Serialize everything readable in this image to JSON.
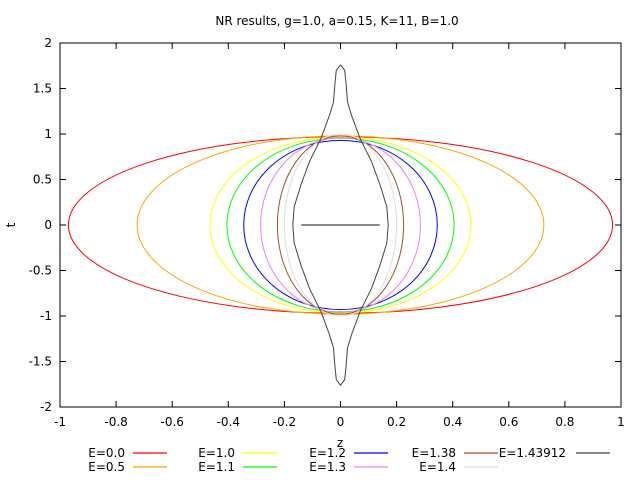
{
  "chart_data": {
    "type": "line",
    "title": "NR results, g=1.0, a=0.15, K=11, B=1.0",
    "xlabel": "z",
    "ylabel": "t",
    "xlim": [
      -1,
      1
    ],
    "ylim": [
      -2,
      2
    ],
    "xticks": [
      "-1",
      "-0.8",
      "-0.6",
      "-0.4",
      "-0.2",
      "0",
      "0.2",
      "0.4",
      "0.6",
      "0.8",
      "1"
    ],
    "yticks": [
      "2",
      "1.5",
      "1",
      "0.5",
      "0",
      "-0.5",
      "-1",
      "-1.5",
      "-2"
    ],
    "grid": false,
    "legend_position": "bottom",
    "series": [
      {
        "name": "E=0.0",
        "color": "#ff0000",
        "shape": "ellipse",
        "z_half_width": 0.97,
        "t_half_height": 0.97
      },
      {
        "name": "E=0.5",
        "color": "#ffa500",
        "shape": "ellipse",
        "z_half_width": 0.725,
        "t_half_height": 0.98
      },
      {
        "name": "E=1.0",
        "color": "#ffff00",
        "shape": "ellipse",
        "z_half_width": 0.465,
        "t_half_height": 0.97
      },
      {
        "name": "E=1.1",
        "color": "#00ff00",
        "shape": "ellipse",
        "z_half_width": 0.405,
        "t_half_height": 0.955
      },
      {
        "name": "E=1.2",
        "color": "#0000ff",
        "shape": "ellipse",
        "z_half_width": 0.345,
        "t_half_height": 0.93
      },
      {
        "name": "E=1.3",
        "color": "#ee82ee",
        "shape": "ellipse",
        "z_half_width": 0.285,
        "t_half_height": 0.96
      },
      {
        "name": "E=1.38",
        "color": "#a0522d",
        "shape": "ellipse",
        "z_half_width": 0.225,
        "t_half_height": 0.98
      },
      {
        "name": "E=1.4",
        "color": "#dddddd",
        "shape": "ellipse",
        "z_half_width": 0.2,
        "t_half_height": 1.0
      },
      {
        "name": "E=1.43912",
        "color": "#444444",
        "shape": "waist",
        "points": [
          [
            0.0,
            1.76
          ],
          [
            -0.015,
            1.7
          ],
          [
            -0.02,
            1.55
          ],
          [
            -0.025,
            1.35
          ],
          [
            -0.04,
            1.2
          ],
          [
            -0.07,
            0.95
          ],
          [
            -0.11,
            0.7
          ],
          [
            -0.14,
            0.45
          ],
          [
            -0.165,
            0.2
          ],
          [
            -0.17,
            0.0
          ],
          [
            -0.165,
            -0.2
          ],
          [
            -0.14,
            -0.45
          ],
          [
            -0.11,
            -0.7
          ],
          [
            -0.07,
            -0.95
          ],
          [
            -0.04,
            -1.2
          ],
          [
            -0.025,
            -1.35
          ],
          [
            -0.02,
            -1.55
          ],
          [
            -0.015,
            -1.7
          ],
          [
            0.0,
            -1.76
          ],
          [
            0.015,
            -1.7
          ],
          [
            0.02,
            -1.55
          ],
          [
            0.025,
            -1.35
          ],
          [
            0.04,
            -1.2
          ],
          [
            0.07,
            -0.95
          ],
          [
            0.11,
            -0.7
          ],
          [
            0.14,
            -0.45
          ],
          [
            0.165,
            -0.2
          ],
          [
            0.17,
            0.0
          ],
          [
            0.165,
            0.2
          ],
          [
            0.14,
            0.45
          ],
          [
            0.11,
            0.7
          ],
          [
            0.07,
            0.95
          ],
          [
            0.04,
            1.2
          ],
          [
            0.025,
            1.35
          ],
          [
            0.02,
            1.55
          ],
          [
            0.015,
            1.7
          ],
          [
            0.0,
            1.76
          ]
        ],
        "segment": [
          [
            -0.14,
            0.0
          ],
          [
            0.14,
            0.0
          ]
        ]
      }
    ]
  }
}
